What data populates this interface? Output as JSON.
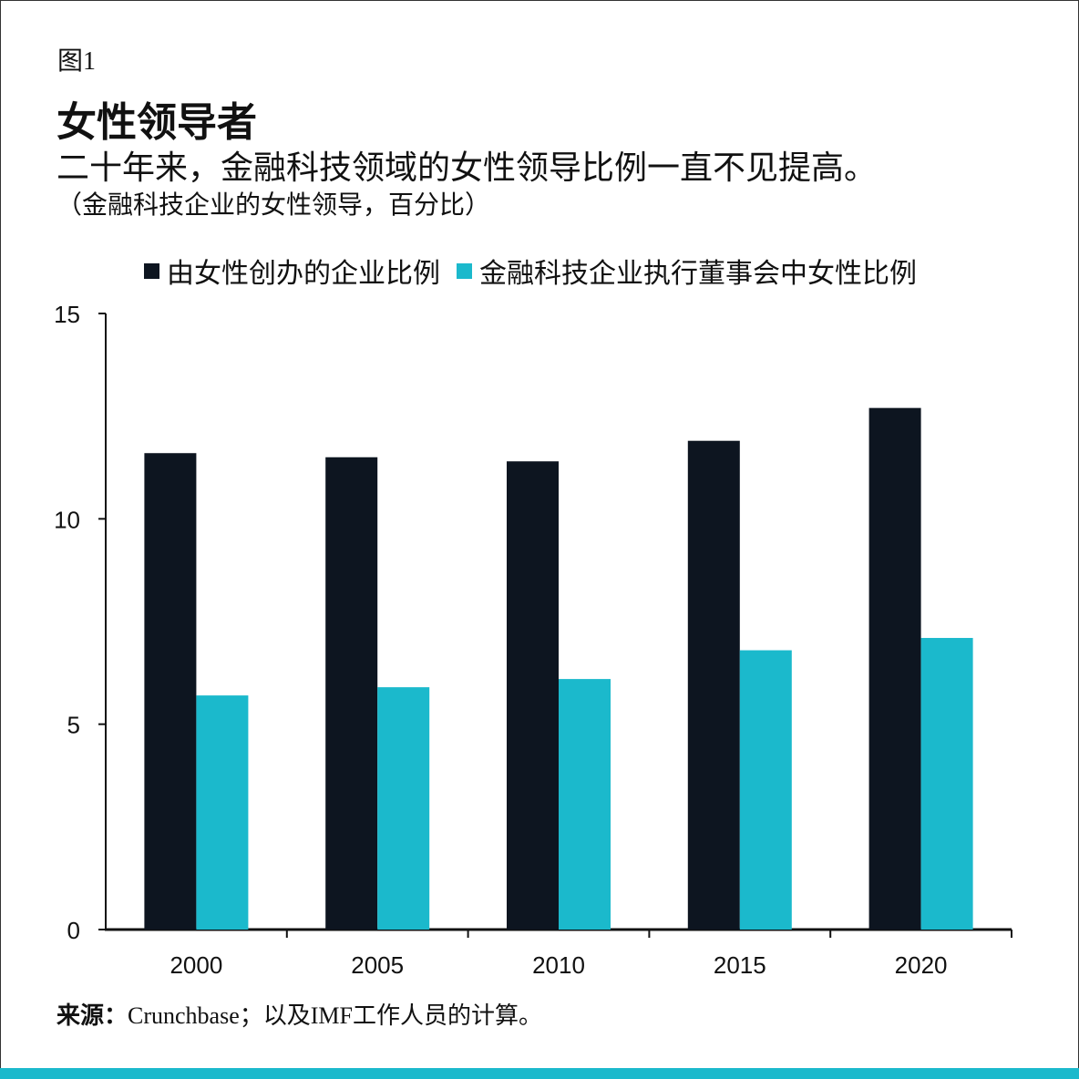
{
  "figure_label": "图1",
  "title": "女性领导者",
  "subtitle": "二十年来，金融科技领域的女性领导比例一直不见提高。",
  "unit_note": "（金融科技企业的女性领导，百分比）",
  "source_label": "来源：",
  "source_text": "Crunchbase；以及IMF工作人员的计算。",
  "colors": {
    "dark": "#0d1520",
    "cyan": "#1bb9cc",
    "bottom_bar": "#1bb9cc"
  },
  "chart_data": {
    "type": "bar",
    "categories": [
      "2000",
      "2005",
      "2010",
      "2015",
      "2020"
    ],
    "series": [
      {
        "name": "由女性创办的企业比例",
        "values": [
          11.6,
          11.5,
          11.4,
          11.9,
          12.7
        ]
      },
      {
        "name": "金融科技企业执行董事会中女性比例",
        "values": [
          5.7,
          5.9,
          6.1,
          6.8,
          7.1
        ]
      }
    ],
    "yticks": [
      "0",
      "5",
      "10",
      "15"
    ],
    "ylim": [
      0,
      15
    ],
    "grid": false,
    "legend_position": "top"
  }
}
